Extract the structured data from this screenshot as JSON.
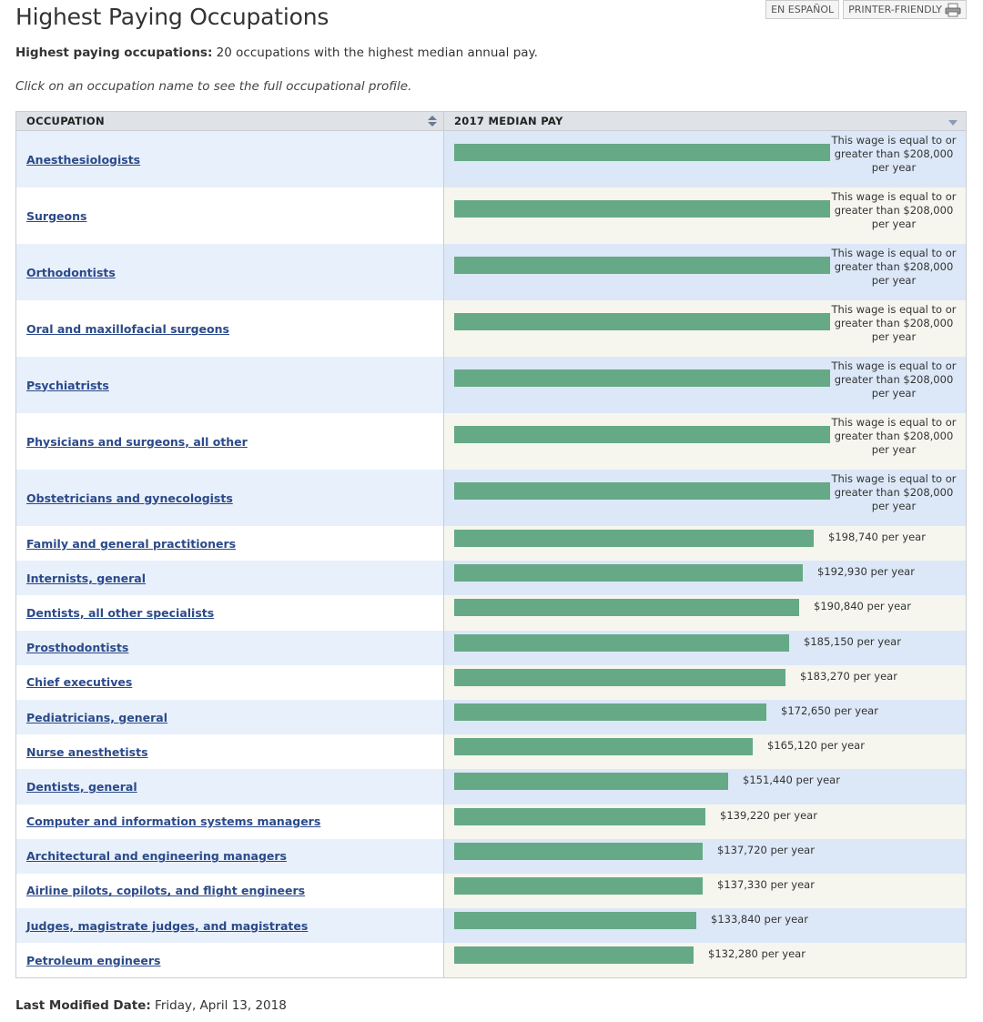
{
  "page": {
    "title": "Highest Paying Occupations",
    "subtitle_label": "Highest paying occupations:",
    "subtitle_text": " 20 occupations with the highest median annual pay.",
    "instruction": "Click on an occupation name to see the full occupational profile.",
    "en_espanol": "EN ESPAÑOL",
    "printer_friendly": "PRINTER-FRIENDLY",
    "last_modified_label": "Last Modified Date:",
    "last_modified_value": " Friday, April 13, 2018"
  },
  "table": {
    "col_occupation": "OCCUPATION",
    "col_pay": "2017 MEDIAN PAY",
    "max_scale": 208000,
    "rows": [
      {
        "name": "Anesthesiologists",
        "pay": 208000,
        "label": "This wage is equal to or greater than $208,000 per year",
        "capped": true
      },
      {
        "name": "Surgeons",
        "pay": 208000,
        "label": "This wage is equal to or greater than $208,000 per year",
        "capped": true
      },
      {
        "name": "Orthodontists",
        "pay": 208000,
        "label": "This wage is equal to or greater than $208,000 per year",
        "capped": true
      },
      {
        "name": "Oral and maxillofacial surgeons",
        "pay": 208000,
        "label": "This wage is equal to or greater than $208,000 per year",
        "capped": true
      },
      {
        "name": "Psychiatrists",
        "pay": 208000,
        "label": "This wage is equal to or greater than $208,000 per year",
        "capped": true
      },
      {
        "name": "Physicians and surgeons, all other",
        "pay": 208000,
        "label": "This wage is equal to or greater than $208,000 per year",
        "capped": true
      },
      {
        "name": "Obstetricians and gynecologists",
        "pay": 208000,
        "label": "This wage is equal to or greater than $208,000 per year",
        "capped": true
      },
      {
        "name": "Family and general practitioners",
        "pay": 198740,
        "label": "$198,740 per year",
        "capped": false
      },
      {
        "name": "Internists, general",
        "pay": 192930,
        "label": "$192,930 per year",
        "capped": false
      },
      {
        "name": "Dentists, all other specialists",
        "pay": 190840,
        "label": "$190,840 per year",
        "capped": false
      },
      {
        "name": "Prosthodontists",
        "pay": 185150,
        "label": "$185,150 per year",
        "capped": false
      },
      {
        "name": "Chief executives",
        "pay": 183270,
        "label": "$183,270 per year",
        "capped": false
      },
      {
        "name": "Pediatricians, general",
        "pay": 172650,
        "label": "$172,650 per year",
        "capped": false
      },
      {
        "name": "Nurse anesthetists",
        "pay": 165120,
        "label": "$165,120 per year",
        "capped": false
      },
      {
        "name": "Dentists, general",
        "pay": 151440,
        "label": "$151,440 per year",
        "capped": false
      },
      {
        "name": "Computer and information systems managers",
        "pay": 139220,
        "label": "$139,220 per year",
        "capped": false
      },
      {
        "name": "Architectural and engineering managers",
        "pay": 137720,
        "label": "$137,720 per year",
        "capped": false
      },
      {
        "name": "Airline pilots, copilots, and flight engineers",
        "pay": 137330,
        "label": "$137,330 per year",
        "capped": false
      },
      {
        "name": "Judges, magistrate judges, and magistrates",
        "pay": 133840,
        "label": "$133,840 per year",
        "capped": false
      },
      {
        "name": "Petroleum engineers",
        "pay": 132280,
        "label": "$132,280 per year",
        "capped": false
      }
    ]
  },
  "colors": {
    "bar": "#66a986",
    "link": "#2b4a8a"
  }
}
